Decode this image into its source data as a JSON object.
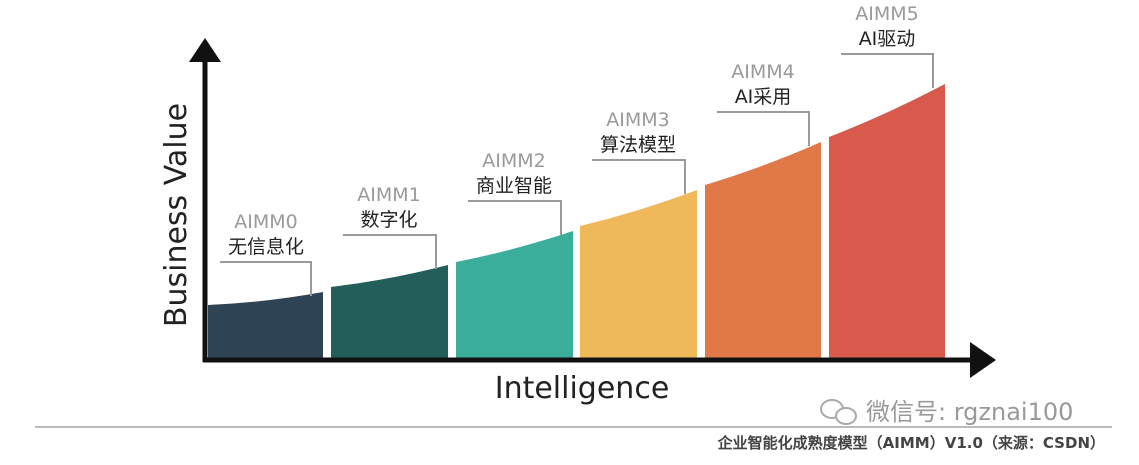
{
  "axes": {
    "y_label": "Business Value",
    "x_label": "Intelligence"
  },
  "stages": [
    {
      "code": "AIMM0",
      "name": "无信息化"
    },
    {
      "code": "AIMM1",
      "name": "数字化"
    },
    {
      "code": "AIMM2",
      "name": "商业智能"
    },
    {
      "code": "AIMM3",
      "name": "算法模型"
    },
    {
      "code": "AIMM4",
      "name": "AI采用"
    },
    {
      "code": "AIMM5",
      "name": "AI驱动"
    }
  ],
  "watermark": "微信号: rgznai100",
  "caption": "企业智能化成熟度模型（AIMM）V1.0（来源：CSDN）"
}
